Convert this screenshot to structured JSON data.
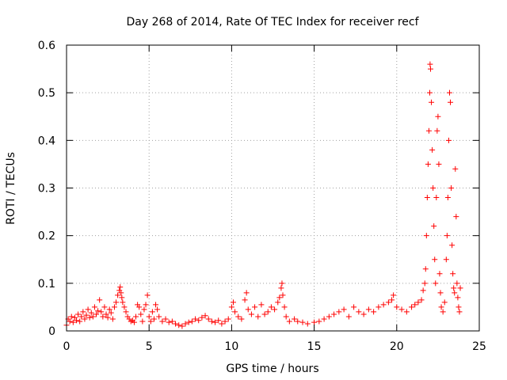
{
  "chart_data": {
    "type": "scatter",
    "title": "Day 268 of 2014, Rate Of TEC Index for receiver recf",
    "xlabel": "GPS time / hours",
    "ylabel": "ROTI / TECUs",
    "xlim": [
      0,
      25
    ],
    "ylim": [
      0,
      0.6
    ],
    "x_ticks": [
      0,
      5,
      10,
      15,
      20,
      25
    ],
    "x_tick_labels": [
      "0",
      "5",
      "10",
      "15",
      "20",
      "25"
    ],
    "y_ticks": [
      0,
      0.1,
      0.2,
      0.3,
      0.4,
      0.5,
      0.6
    ],
    "y_tick_labels": [
      "0",
      "0.1",
      "0.2",
      "0.3",
      "0.4",
      "0.5",
      "0.6"
    ],
    "grid": true,
    "marker": "plus",
    "color": "#ff0000",
    "series": [
      {
        "name": "ROTI",
        "points": [
          [
            0.0,
            0.012
          ],
          [
            0.1,
            0.025
          ],
          [
            0.2,
            0.02
          ],
          [
            0.3,
            0.03
          ],
          [
            0.4,
            0.018
          ],
          [
            0.5,
            0.028
          ],
          [
            0.6,
            0.022
          ],
          [
            0.7,
            0.035
          ],
          [
            0.8,
            0.02
          ],
          [
            0.9,
            0.03
          ],
          [
            1.0,
            0.04
          ],
          [
            1.1,
            0.025
          ],
          [
            1.2,
            0.033
          ],
          [
            1.3,
            0.045
          ],
          [
            1.4,
            0.028
          ],
          [
            1.5,
            0.038
          ],
          [
            1.6,
            0.03
          ],
          [
            1.7,
            0.05
          ],
          [
            1.8,
            0.035
          ],
          [
            1.9,
            0.042
          ],
          [
            2.0,
            0.065
          ],
          [
            2.1,
            0.04
          ],
          [
            2.2,
            0.03
          ],
          [
            2.3,
            0.05
          ],
          [
            2.4,
            0.035
          ],
          [
            2.5,
            0.028
          ],
          [
            2.6,
            0.045
          ],
          [
            2.7,
            0.038
          ],
          [
            2.8,
            0.025
          ],
          [
            2.9,
            0.05
          ],
          [
            3.0,
            0.06
          ],
          [
            3.1,
            0.075
          ],
          [
            3.2,
            0.085
          ],
          [
            3.25,
            0.092
          ],
          [
            3.3,
            0.08
          ],
          [
            3.35,
            0.07
          ],
          [
            3.4,
            0.06
          ],
          [
            3.5,
            0.05
          ],
          [
            3.6,
            0.04
          ],
          [
            3.7,
            0.03
          ],
          [
            3.8,
            0.025
          ],
          [
            3.9,
            0.02
          ],
          [
            4.0,
            0.022
          ],
          [
            4.1,
            0.018
          ],
          [
            4.2,
            0.03
          ],
          [
            4.3,
            0.055
          ],
          [
            4.4,
            0.05
          ],
          [
            4.5,
            0.035
          ],
          [
            4.6,
            0.02
          ],
          [
            4.7,
            0.045
          ],
          [
            4.8,
            0.055
          ],
          [
            4.9,
            0.075
          ],
          [
            5.0,
            0.03
          ],
          [
            5.1,
            0.02
          ],
          [
            5.2,
            0.04
          ],
          [
            5.3,
            0.025
          ],
          [
            5.4,
            0.055
          ],
          [
            5.5,
            0.045
          ],
          [
            5.6,
            0.03
          ],
          [
            5.8,
            0.02
          ],
          [
            6.0,
            0.025
          ],
          [
            6.2,
            0.018
          ],
          [
            6.4,
            0.02
          ],
          [
            6.6,
            0.015
          ],
          [
            6.8,
            0.012
          ],
          [
            7.0,
            0.01
          ],
          [
            7.2,
            0.015
          ],
          [
            7.4,
            0.018
          ],
          [
            7.6,
            0.02
          ],
          [
            7.8,
            0.025
          ],
          [
            8.0,
            0.022
          ],
          [
            8.2,
            0.028
          ],
          [
            8.4,
            0.032
          ],
          [
            8.6,
            0.025
          ],
          [
            8.8,
            0.02
          ],
          [
            9.0,
            0.018
          ],
          [
            9.2,
            0.022
          ],
          [
            9.4,
            0.015
          ],
          [
            9.6,
            0.02
          ],
          [
            9.8,
            0.025
          ],
          [
            10.0,
            0.05
          ],
          [
            10.1,
            0.06
          ],
          [
            10.2,
            0.04
          ],
          [
            10.4,
            0.03
          ],
          [
            10.6,
            0.025
          ],
          [
            10.8,
            0.065
          ],
          [
            10.9,
            0.08
          ],
          [
            11.0,
            0.045
          ],
          [
            11.2,
            0.035
          ],
          [
            11.4,
            0.05
          ],
          [
            11.6,
            0.03
          ],
          [
            11.8,
            0.055
          ],
          [
            12.0,
            0.035
          ],
          [
            12.2,
            0.04
          ],
          [
            12.4,
            0.05
          ],
          [
            12.6,
            0.045
          ],
          [
            12.8,
            0.06
          ],
          [
            12.9,
            0.07
          ],
          [
            13.0,
            0.09
          ],
          [
            13.05,
            0.1
          ],
          [
            13.1,
            0.075
          ],
          [
            13.2,
            0.05
          ],
          [
            13.3,
            0.03
          ],
          [
            13.5,
            0.02
          ],
          [
            13.8,
            0.025
          ],
          [
            14.0,
            0.02
          ],
          [
            14.3,
            0.018
          ],
          [
            14.6,
            0.015
          ],
          [
            15.0,
            0.018
          ],
          [
            15.3,
            0.02
          ],
          [
            15.6,
            0.025
          ],
          [
            15.9,
            0.03
          ],
          [
            16.2,
            0.035
          ],
          [
            16.5,
            0.04
          ],
          [
            16.8,
            0.045
          ],
          [
            17.1,
            0.03
          ],
          [
            17.4,
            0.05
          ],
          [
            17.7,
            0.04
          ],
          [
            18.0,
            0.035
          ],
          [
            18.3,
            0.045
          ],
          [
            18.6,
            0.04
          ],
          [
            18.9,
            0.05
          ],
          [
            19.2,
            0.055
          ],
          [
            19.5,
            0.06
          ],
          [
            19.7,
            0.065
          ],
          [
            19.8,
            0.075
          ],
          [
            20.0,
            0.05
          ],
          [
            20.3,
            0.045
          ],
          [
            20.6,
            0.04
          ],
          [
            20.9,
            0.05
          ],
          [
            21.1,
            0.055
          ],
          [
            21.3,
            0.06
          ],
          [
            21.5,
            0.065
          ],
          [
            21.6,
            0.085
          ],
          [
            21.7,
            0.1
          ],
          [
            21.75,
            0.13
          ],
          [
            21.8,
            0.2
          ],
          [
            21.85,
            0.28
          ],
          [
            21.9,
            0.35
          ],
          [
            21.95,
            0.42
          ],
          [
            22.0,
            0.5
          ],
          [
            22.02,
            0.56
          ],
          [
            22.05,
            0.55
          ],
          [
            22.1,
            0.48
          ],
          [
            22.15,
            0.38
          ],
          [
            22.2,
            0.3
          ],
          [
            22.25,
            0.22
          ],
          [
            22.3,
            0.15
          ],
          [
            22.35,
            0.1
          ],
          [
            22.4,
            0.28
          ],
          [
            22.45,
            0.42
          ],
          [
            22.5,
            0.45
          ],
          [
            22.55,
            0.35
          ],
          [
            22.6,
            0.12
          ],
          [
            22.65,
            0.08
          ],
          [
            22.7,
            0.05
          ],
          [
            22.8,
            0.04
          ],
          [
            22.9,
            0.06
          ],
          [
            23.0,
            0.15
          ],
          [
            23.05,
            0.2
          ],
          [
            23.1,
            0.28
          ],
          [
            23.15,
            0.4
          ],
          [
            23.2,
            0.5
          ],
          [
            23.25,
            0.48
          ],
          [
            23.3,
            0.3
          ],
          [
            23.35,
            0.18
          ],
          [
            23.4,
            0.12
          ],
          [
            23.45,
            0.09
          ],
          [
            23.5,
            0.08
          ],
          [
            23.55,
            0.34
          ],
          [
            23.6,
            0.24
          ],
          [
            23.65,
            0.1
          ],
          [
            23.7,
            0.07
          ],
          [
            23.75,
            0.05
          ],
          [
            23.8,
            0.04
          ],
          [
            23.85,
            0.09
          ]
        ]
      }
    ]
  }
}
